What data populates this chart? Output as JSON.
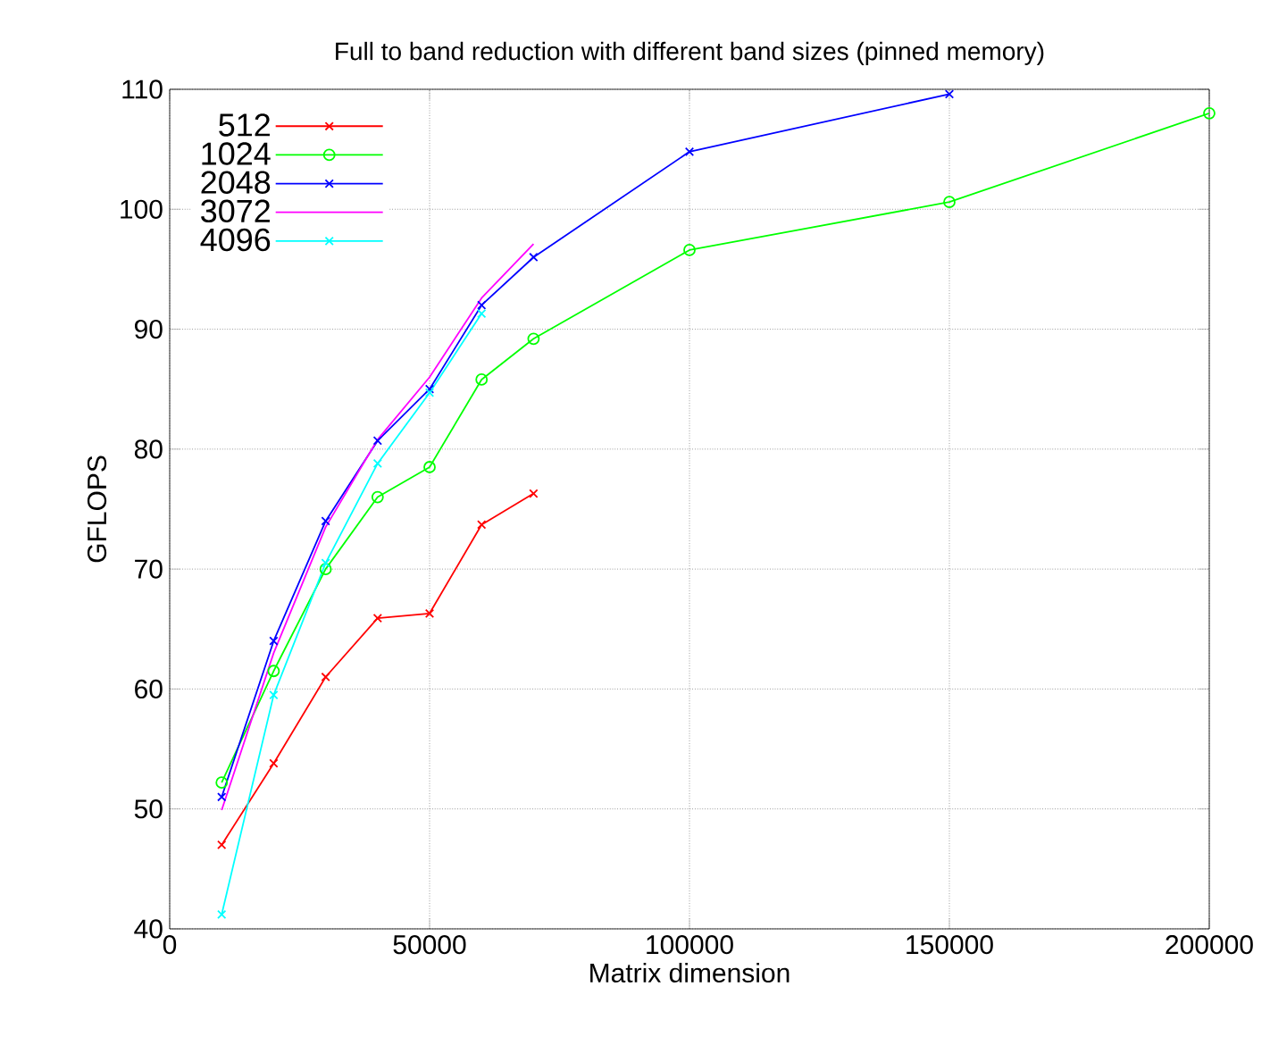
{
  "chart_data": {
    "type": "line",
    "title": "Full to band reduction with different band sizes (pinned memory)",
    "xlabel": "Matrix dimension",
    "ylabel": "GFLOPS",
    "xlim": [
      0,
      200000
    ],
    "xticks": [
      0,
      50000,
      100000,
      150000,
      200000
    ],
    "ylim": [
      40,
      110
    ],
    "yticks": [
      40,
      50,
      60,
      70,
      80,
      90,
      100,
      110
    ],
    "grid": true,
    "legend": "top left",
    "series": [
      {
        "name": "512",
        "color": "#ff0000",
        "marker": "cross",
        "x": [
          10000,
          20000,
          30000,
          40000,
          50000,
          60000,
          70000
        ],
        "values": [
          47,
          53.8,
          61,
          65.9,
          66.3,
          73.7,
          76.3
        ]
      },
      {
        "name": "1024",
        "color": "#00ff00",
        "marker": "circle",
        "x": [
          10000,
          20000,
          30000,
          40000,
          50000,
          60000,
          70000,
          100000,
          150000,
          200000
        ],
        "values": [
          52.2,
          61.5,
          70,
          76,
          78.5,
          85.8,
          89.2,
          96.6,
          100.6,
          108
        ]
      },
      {
        "name": "2048",
        "color": "#0000ff",
        "marker": "cross",
        "x": [
          10000,
          20000,
          30000,
          40000,
          50000,
          60000,
          70000,
          100000,
          150000
        ],
        "values": [
          51,
          64,
          74,
          80.7,
          85,
          92,
          96,
          104.8,
          109.6
        ]
      },
      {
        "name": "3072",
        "color": "#ff00ff",
        "marker": "none",
        "x": [
          10000,
          20000,
          30000,
          40000,
          50000,
          60000,
          70000
        ],
        "values": [
          49.9,
          63,
          73.5,
          80.8,
          86,
          92.6,
          97.1
        ]
      },
      {
        "name": "4096",
        "color": "#00ffff",
        "marker": "cross",
        "x": [
          10000,
          20000,
          30000,
          40000,
          50000,
          60000
        ],
        "values": [
          41.2,
          59.5,
          70.5,
          78.8,
          84.7,
          91.3
        ]
      }
    ]
  }
}
